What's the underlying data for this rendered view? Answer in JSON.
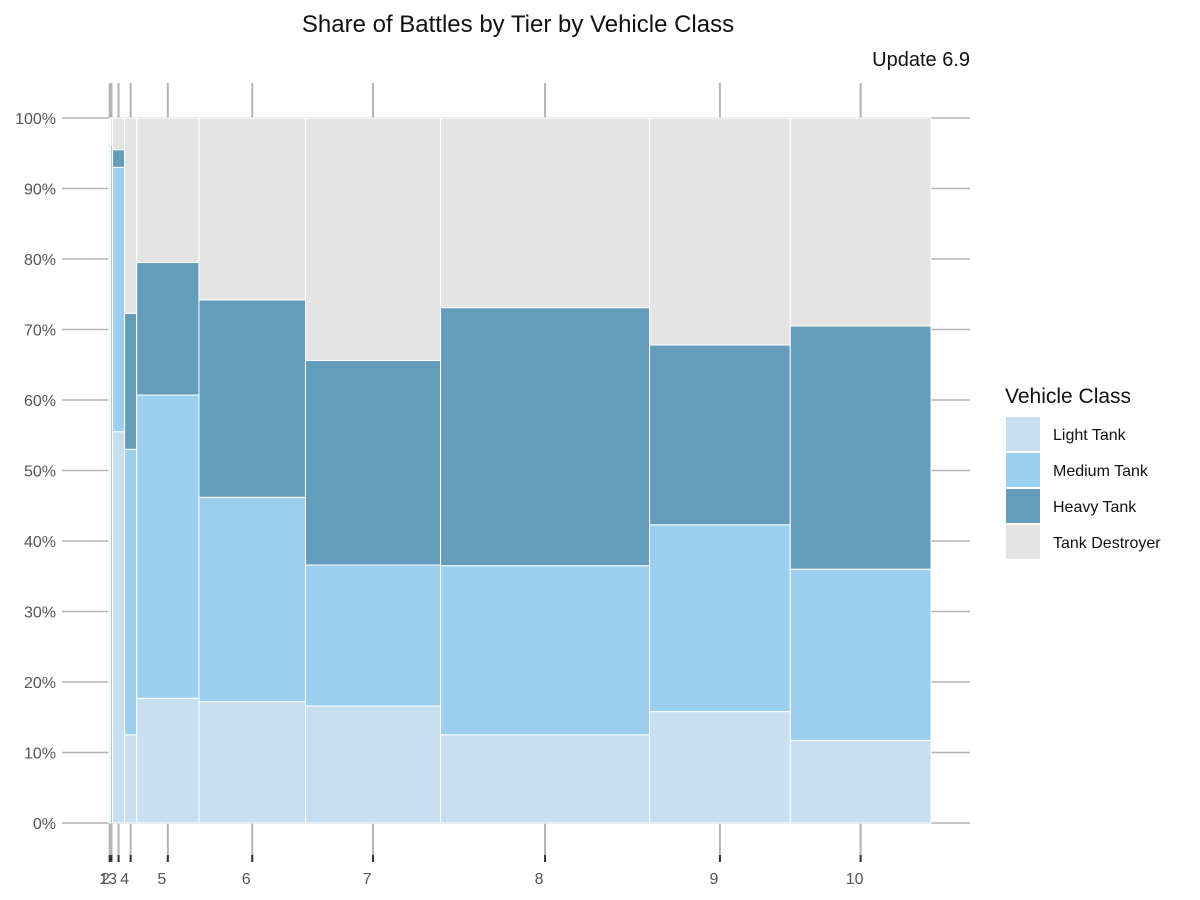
{
  "chart_data": {
    "type": "bar",
    "subtype": "mosaic-stacked-100",
    "title": "Share of Battles by Tier by Vehicle Class",
    "subtitle": "Update 6.9",
    "xlabel": "",
    "ylabel": "",
    "ylim": [
      0,
      1
    ],
    "y_ticks": [
      "0%",
      "10%",
      "20%",
      "30%",
      "40%",
      "50%",
      "60%",
      "70%",
      "80%",
      "90%",
      "100%"
    ],
    "categories": [
      "1",
      "2",
      "3",
      "4",
      "5",
      "6",
      "7",
      "8",
      "9",
      "10"
    ],
    "x_tick_labels": [
      "1",
      "2",
      "3",
      "4",
      "5",
      "6",
      "7",
      "8",
      "9",
      "10"
    ],
    "bar_widths_share_of_battles": [
      0.0016,
      0.0026,
      0.0143,
      0.0143,
      0.0738,
      0.1262,
      0.16,
      0.2476,
      0.1667,
      0.1667
    ],
    "series": [
      {
        "name": "Light Tank",
        "values": [
          1.0,
          0.0,
          0.555,
          0.125,
          0.177,
          0.172,
          0.166,
          0.125,
          0.158,
          0.117
        ]
      },
      {
        "name": "Medium Tank",
        "values": [
          0.0,
          0.962,
          0.375,
          0.405,
          0.43,
          0.29,
          0.2,
          0.24,
          0.265,
          0.243
        ]
      },
      {
        "name": "Heavy Tank",
        "values": [
          0.0,
          0.0,
          0.025,
          0.193,
          0.188,
          0.28,
          0.29,
          0.366,
          0.255,
          0.345
        ]
      },
      {
        "name": "Tank Destroyer",
        "values": [
          0.0,
          0.038,
          0.045,
          0.277,
          0.205,
          0.258,
          0.344,
          0.269,
          0.322,
          0.295
        ]
      }
    ],
    "legend": {
      "title": "Vehicle Class",
      "position": "right"
    },
    "colors": {
      "Light Tank": "#c8dff2",
      "Medium Tank": "#9bcfef",
      "Heavy Tank": "#649dbb",
      "Tank Destroyer": "#e4e4e4",
      "axis_line": "#b3b3b3",
      "tick_text": "#4d4d4d"
    },
    "grid": false
  }
}
